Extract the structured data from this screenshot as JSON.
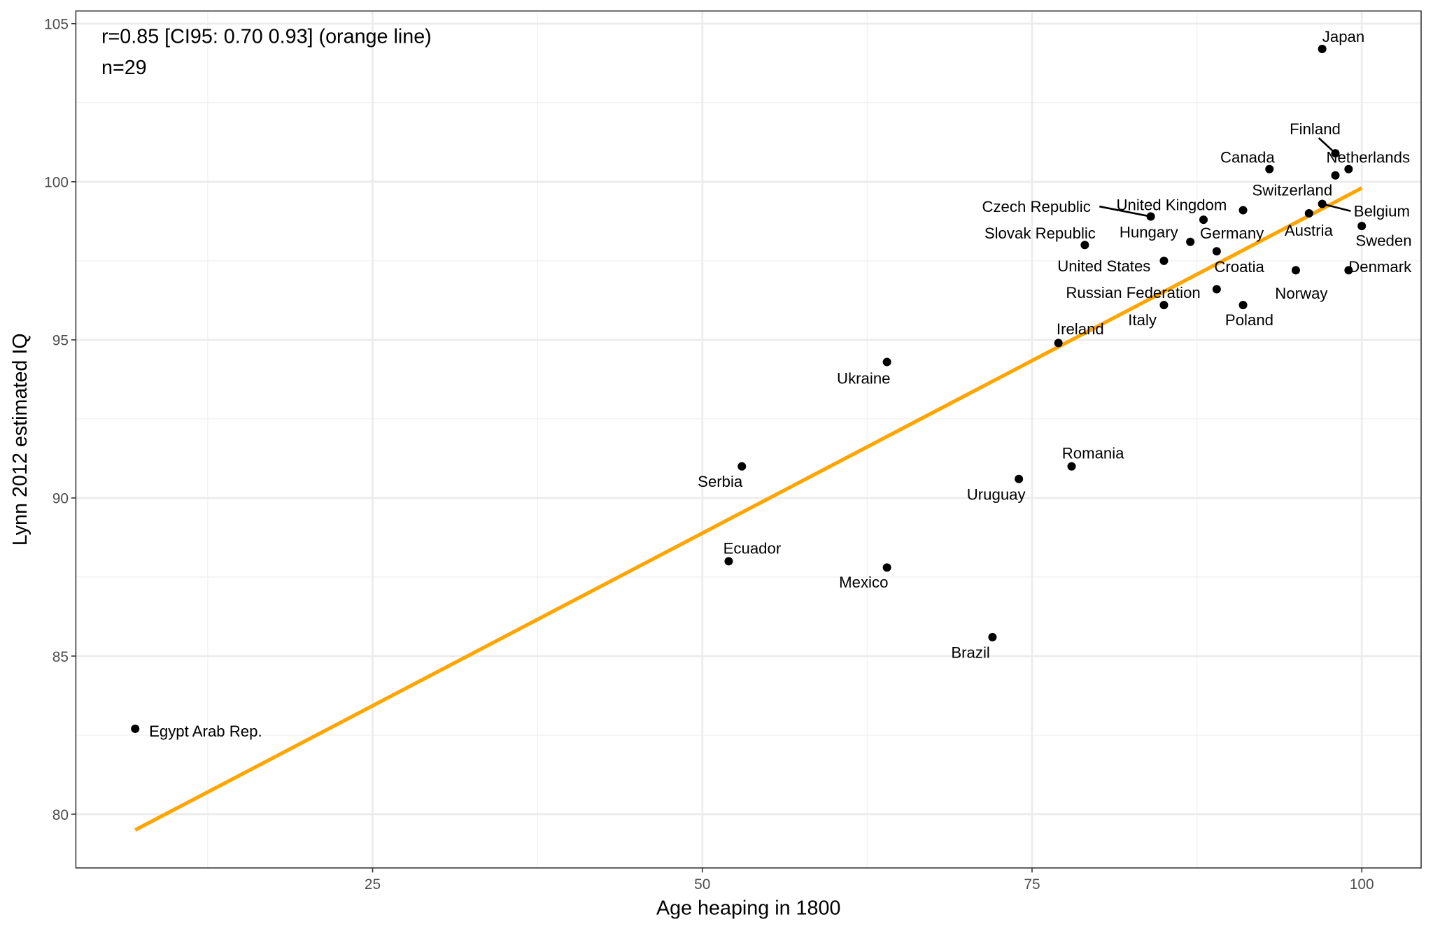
{
  "chart_data": {
    "type": "scatter",
    "title": "",
    "xlabel": "Age heaping in 1800",
    "ylabel": "Lynn 2012 estimated IQ",
    "xlim": [
      2.5,
      104.5
    ],
    "ylim": [
      78.3,
      105.4
    ],
    "x_ticks": [
      25,
      50,
      75,
      100
    ],
    "y_ticks": [
      80,
      85,
      90,
      95,
      100,
      105
    ],
    "grid": true,
    "annotations": [
      "r=0.85 [CI95: 0.70 0.93] (orange line)",
      "n=29"
    ],
    "fit_line": {
      "color": "#FFA500",
      "x": [
        7,
        100
      ],
      "y": [
        79.5,
        99.8
      ]
    },
    "point_color": "#000000",
    "points": [
      {
        "label": "Japan",
        "x": 97,
        "y": 104.2
      },
      {
        "label": "Finland",
        "x": 98,
        "y": 100.9
      },
      {
        "label": "Netherlands",
        "x": 99,
        "y": 100.4
      },
      {
        "label": "Canada",
        "x": 93,
        "y": 100.4
      },
      {
        "label": "Switzerland",
        "x": 98,
        "y": 100.2
      },
      {
        "label": "Czech Republic",
        "x": 84,
        "y": 98.9
      },
      {
        "label": "United Kingdom",
        "x": 91,
        "y": 99.1
      },
      {
        "label": "Belgium",
        "x": 97,
        "y": 99.3
      },
      {
        "label": "Slovak Republic",
        "x": 79,
        "y": 98.0
      },
      {
        "label": "Hungary",
        "x": 88,
        "y": 98.8
      },
      {
        "label": "Germany",
        "x": 87,
        "y": 98.1
      },
      {
        "label": "Austria",
        "x": 96,
        "y": 99.0
      },
      {
        "label": "Sweden",
        "x": 100,
        "y": 98.6
      },
      {
        "label": "United States",
        "x": 85,
        "y": 97.5
      },
      {
        "label": "Croatia",
        "x": 89,
        "y": 97.8
      },
      {
        "label": "Denmark",
        "x": 99,
        "y": 97.2
      },
      {
        "label": "Russian Federation",
        "x": 89,
        "y": 96.6
      },
      {
        "label": "Norway",
        "x": 95,
        "y": 97.2
      },
      {
        "label": "Italy",
        "x": 85,
        "y": 96.1
      },
      {
        "label": "Poland",
        "x": 91,
        "y": 96.1
      },
      {
        "label": "Ireland",
        "x": 77,
        "y": 94.9
      },
      {
        "label": "Ukraine",
        "x": 64,
        "y": 94.3
      },
      {
        "label": "Romania",
        "x": 78,
        "y": 91.0
      },
      {
        "label": "Serbia",
        "x": 53,
        "y": 91.0
      },
      {
        "label": "Uruguay",
        "x": 74,
        "y": 90.6
      },
      {
        "label": "Ecuador",
        "x": 52,
        "y": 88.0
      },
      {
        "label": "Mexico",
        "x": 64,
        "y": 87.8
      },
      {
        "label": "Brazil",
        "x": 72,
        "y": 85.6
      },
      {
        "label": "Egypt Arab Rep.",
        "x": 7,
        "y": 82.7
      }
    ]
  }
}
